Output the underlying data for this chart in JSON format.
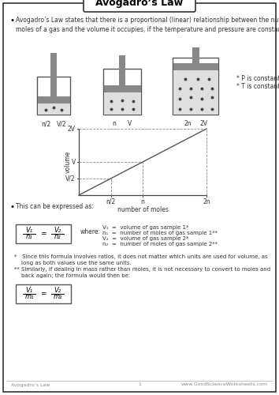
{
  "title": "Avogadro’s Law",
  "bullet1": "Avogadro’s Law states that there is a proportional (linear) relationship between the number of\nmoles of a gas and the volume it occupies, if the temperature and pressure are constant.",
  "p_constant": "* P is constant",
  "t_constant": "* T is constant",
  "cylinder_labels": [
    [
      "n/2",
      "V/2"
    ],
    [
      "n",
      "V"
    ],
    [
      "2n",
      "2V"
    ]
  ],
  "graph_ytick_labels": [
    "V/2",
    "V",
    "2V"
  ],
  "graph_xtick_labels": [
    "n/2",
    "n",
    "2n"
  ],
  "graph_xlabel": "number of moles",
  "graph_ylabel": "volume",
  "bullet2": "This can be expressed as:",
  "where_label": "where:",
  "where_items": [
    "V₁  =  volume of gas sample 1*",
    "n₁  =  number of moles of gas sample 1**",
    "V₂  =  volume of gas sample 2*",
    "n₂  =  number of moles of gas sample 2**"
  ],
  "footnote1": "*   Since this formula involves ratios, it does not matter which units are used for volume, as\n    long as both values use the same units.",
  "footnote2": "** Similarly, if dealing in mass rather than moles, it is not necessary to convert to moles and\n    back again; the formula would then be:",
  "footer_left": "Avogadro’s Law",
  "footer_center": "1",
  "footer_right": "www.GoodScienceWorksheets.com",
  "bg_color": "#ffffff"
}
